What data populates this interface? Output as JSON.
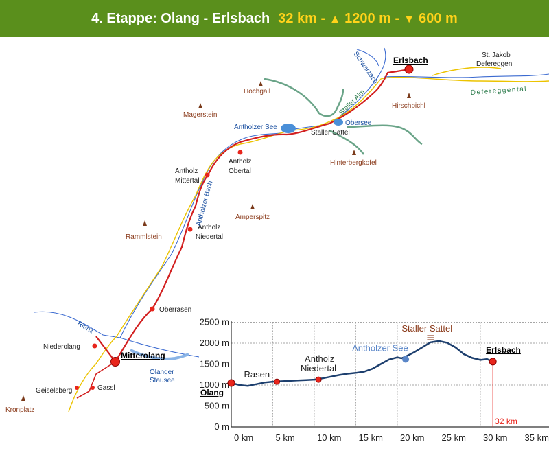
{
  "title": {
    "stage": "4. Etappe: Olang - Erlsbach",
    "distance": "32 km -",
    "ascent": "1200 m -",
    "descent": "600 m",
    "up_symbol": "▲",
    "down_symbol": "▼"
  },
  "map": {
    "towns": [
      {
        "name": "Mitterolang"
      },
      {
        "name": "Erlsbach"
      }
    ],
    "villages": [
      {
        "name": "Niederolang"
      },
      {
        "name": "Gassl"
      },
      {
        "name": "Geiselsberg"
      },
      {
        "name": "Oberrasen"
      },
      {
        "name": "Antholz"
      },
      {
        "name": "Niedertal"
      },
      {
        "name": "Antholz"
      },
      {
        "name": "Mittertal"
      },
      {
        "name": "Antholz"
      },
      {
        "name": "Obertal"
      },
      {
        "name": "Staller Sattel"
      },
      {
        "name": "St. Jakob"
      },
      {
        "name": "Defereggen"
      }
    ],
    "peaks": [
      {
        "name": "Hochgall"
      },
      {
        "name": "Magerstein"
      },
      {
        "name": "Hirschbichl"
      },
      {
        "name": "Hinterbergkofel"
      },
      {
        "name": "Amperspitz"
      },
      {
        "name": "Rammlstein"
      },
      {
        "name": "Kronplatz"
      }
    ],
    "waters": [
      {
        "name": "Antholzer See"
      },
      {
        "name": "Obersee"
      },
      {
        "name": "Olanger"
      },
      {
        "name": "Stausee"
      },
      {
        "name": "Rienz"
      },
      {
        "name": "Antholzer Bach"
      },
      {
        "name": "Schwarzach"
      },
      {
        "name": "Staller Alm"
      },
      {
        "name": "Defereggental"
      }
    ]
  },
  "chart_data": {
    "type": "line",
    "xlabel": "",
    "ylabel": "",
    "xlim": [
      0,
      35
    ],
    "ylim": [
      0,
      2500
    ],
    "x_ticks": [
      "0 km",
      "5 km",
      "10 km",
      "15 km",
      "20 km",
      "25 km",
      "30 km",
      "35 km"
    ],
    "y_ticks": [
      "0 m",
      "500 m",
      "1000 m",
      "1500 m",
      "2000 m",
      "2500 m"
    ],
    "series": [
      {
        "points": [
          [
            0,
            1050
          ],
          [
            1,
            1000
          ],
          [
            2,
            980
          ],
          [
            3,
            1020
          ],
          [
            4,
            1060
          ],
          [
            5,
            1080
          ],
          [
            6,
            1090
          ],
          [
            7,
            1100
          ],
          [
            8,
            1110
          ],
          [
            9,
            1120
          ],
          [
            10,
            1130
          ],
          [
            11,
            1160
          ],
          [
            12,
            1200
          ],
          [
            13,
            1240
          ],
          [
            14,
            1270
          ],
          [
            15,
            1290
          ],
          [
            16,
            1320
          ],
          [
            17,
            1390
          ],
          [
            18,
            1500
          ],
          [
            19,
            1610
          ],
          [
            20,
            1660
          ],
          [
            20.5,
            1640
          ],
          [
            21,
            1680
          ],
          [
            22,
            1780
          ],
          [
            23,
            1900
          ],
          [
            24,
            2020
          ],
          [
            25,
            2050
          ],
          [
            26,
            2010
          ],
          [
            27,
            1900
          ],
          [
            28,
            1740
          ],
          [
            29,
            1650
          ],
          [
            30,
            1600
          ],
          [
            30.8,
            1620
          ],
          [
            31.5,
            1560
          ]
        ]
      }
    ],
    "labels": [
      {
        "text": "Olang",
        "x": 0,
        "y": 1050
      },
      {
        "text": "Rasen",
        "x": 5.5,
        "y": 1080
      },
      {
        "text": "Antholz",
        "x": 10.5,
        "y": 1130
      },
      {
        "text": "Niedertal",
        "x": 10.5,
        "y": 1130
      },
      {
        "text": "Antholzer See",
        "x": 21,
        "y": 1680
      },
      {
        "text": "Staller Sattel",
        "x": 24,
        "y": 2050
      },
      {
        "text": "Erlsbach",
        "x": 31.5,
        "y": 1560
      }
    ],
    "end_marker": "32 km",
    "colors": {
      "profile": "#1d3f6e",
      "marker": "#e8251c",
      "grid": "#888888"
    }
  }
}
